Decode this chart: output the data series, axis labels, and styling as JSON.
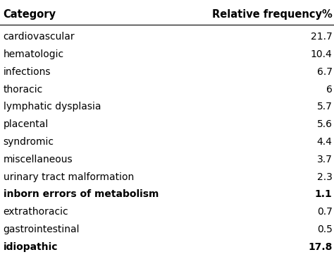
{
  "header_col1": "Category",
  "header_col2": "Relative frequency%",
  "rows": [
    {
      "category": "cardiovascular",
      "value": "21.7",
      "bold": false
    },
    {
      "category": "hematologic",
      "value": "10.4",
      "bold": false
    },
    {
      "category": "infections",
      "value": "6.7",
      "bold": false
    },
    {
      "category": "thoracic",
      "value": "6",
      "bold": false
    },
    {
      "category": "lymphatic dysplasia",
      "value": "5.7",
      "bold": false
    },
    {
      "category": "placental",
      "value": "5.6",
      "bold": false
    },
    {
      "category": "syndromic",
      "value": "4.4",
      "bold": false
    },
    {
      "category": "miscellaneous",
      "value": "3.7",
      "bold": false
    },
    {
      "category": "urinary tract malformation",
      "value": "2.3",
      "bold": false
    },
    {
      "category": "inborn errors of metabolism",
      "value": "1.1",
      "bold": true
    },
    {
      "category": "extrathoracic",
      "value": "0.7",
      "bold": false
    },
    {
      "category": "gastrointestinal",
      "value": "0.5",
      "bold": false
    },
    {
      "category": "idiopathic",
      "value": "17.8",
      "bold": true
    }
  ],
  "background_color": "#ffffff",
  "header_line_color": "#000000",
  "text_color": "#000000",
  "header_fontsize": 10.5,
  "body_fontsize": 10,
  "fig_width": 4.74,
  "fig_height": 3.81,
  "dpi": 100
}
